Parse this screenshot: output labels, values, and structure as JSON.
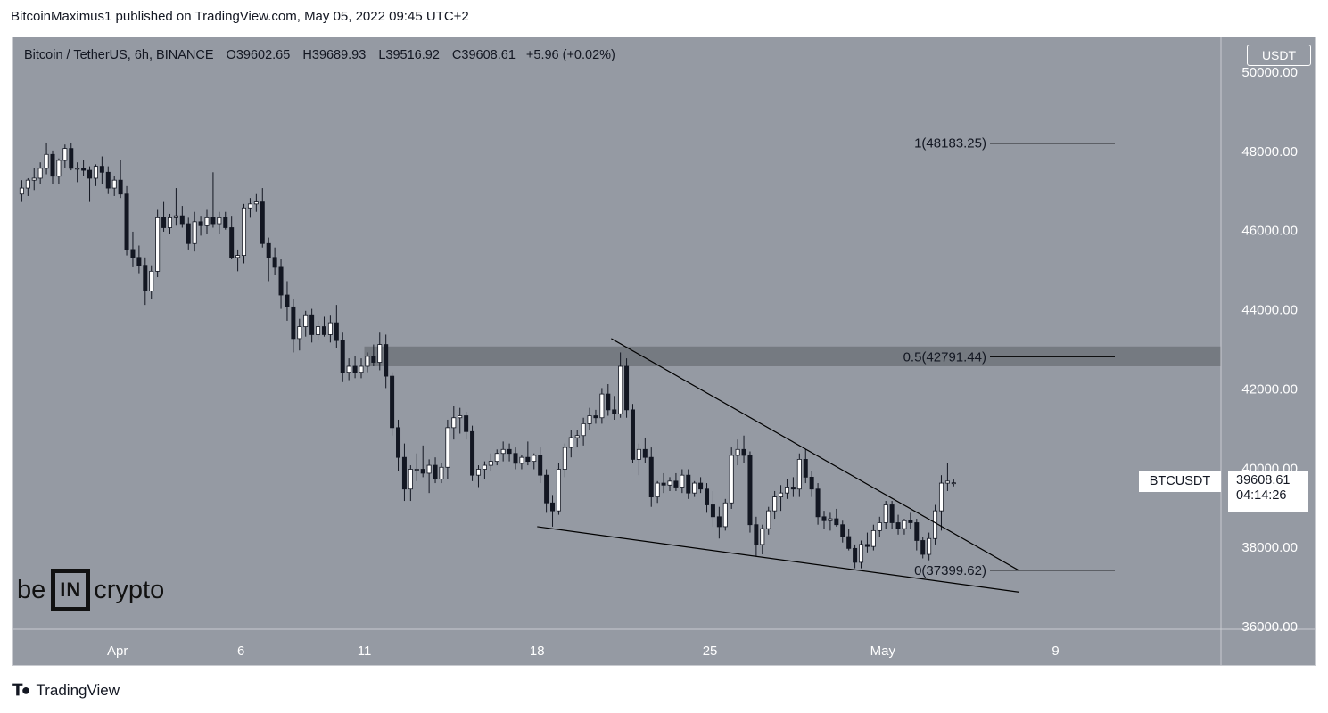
{
  "header": {
    "text": "BitcoinMaximus1 published on TradingView.com, May 05, 2022 09:45 UTC+2"
  },
  "legend": {
    "symbol": "Bitcoin / TetherUS, 6h, BINANCE",
    "o_label": "O",
    "o_value": "39602.65",
    "h_label": "H",
    "h_value": "39689.93",
    "l_label": "L",
    "l_value": "39516.92",
    "c_label": "C",
    "c_value": "39608.61",
    "change": "+5.96 (+0.02%)"
  },
  "currency": "USDT",
  "price_tag": {
    "ticker": "BTCUSDT",
    "price": "39608.61",
    "countdown": "04:14:26"
  },
  "logo": {
    "left": "be",
    "bracket": "IN",
    "right": "crypto"
  },
  "footer": {
    "brand": "TradingView"
  },
  "colors": {
    "background": "#959aa3",
    "up_candle": "#ffffff",
    "down_candle": "#131722",
    "zone": "#6b6f76",
    "line": "#000000"
  },
  "chart_data": {
    "type": "candlestick",
    "symbol": "BTCUSDT",
    "timeframe": "6h",
    "ylim": [
      36000,
      50400
    ],
    "y_ticks": [
      36000,
      38000,
      40000,
      42000,
      44000,
      46000,
      48000,
      50000
    ],
    "y_tick_labels": [
      "36000.00",
      "38000.00",
      "40000.00",
      "42000.00",
      "44000.00",
      "46000.00",
      "48000.00",
      "50000.00"
    ],
    "x_ticks": [
      {
        "label": "Apr",
        "date": "2022-04-01"
      },
      {
        "label": "6",
        "date": "2022-04-06"
      },
      {
        "label": "11",
        "date": "2022-04-11"
      },
      {
        "label": "18",
        "date": "2022-04-18"
      },
      {
        "label": "25",
        "date": "2022-04-25"
      },
      {
        "label": "May",
        "date": "2022-05-02"
      },
      {
        "label": "9",
        "date": "2022-05-09"
      }
    ],
    "xlim": [
      "2022-03-28T00:00",
      "2022-05-13T00:00"
    ],
    "candles": [
      [
        "2022-03-28T00:00",
        46900,
        47250,
        46700,
        47050
      ],
      [
        "2022-03-28T06:00",
        47050,
        47300,
        46850,
        47250
      ],
      [
        "2022-03-28T12:00",
        47250,
        47550,
        47000,
        47300
      ],
      [
        "2022-03-28T18:00",
        47300,
        47700,
        47150,
        47550
      ],
      [
        "2022-03-29T00:00",
        47550,
        48200,
        47400,
        47900
      ],
      [
        "2022-03-29T06:00",
        47900,
        48000,
        47150,
        47350
      ],
      [
        "2022-03-29T12:00",
        47350,
        47800,
        47150,
        47750
      ],
      [
        "2022-03-29T18:00",
        47750,
        48150,
        47550,
        48050
      ],
      [
        "2022-03-30T00:00",
        48050,
        48200,
        47500,
        47550
      ],
      [
        "2022-03-30T06:00",
        47550,
        47700,
        47200,
        47550
      ],
      [
        "2022-03-30T12:00",
        47550,
        47750,
        47350,
        47500
      ],
      [
        "2022-03-30T18:00",
        47500,
        47600,
        46700,
        47300
      ],
      [
        "2022-03-31T00:00",
        47300,
        47650,
        47100,
        47600
      ],
      [
        "2022-03-31T06:00",
        47600,
        47850,
        47150,
        47450
      ],
      [
        "2022-03-31T12:00",
        47450,
        47600,
        46900,
        47050
      ],
      [
        "2022-03-31T18:00",
        47050,
        47350,
        46850,
        47250
      ],
      [
        "2022-04-01T00:00",
        47250,
        47750,
        46800,
        46900
      ],
      [
        "2022-04-01T06:00",
        46900,
        47100,
        45350,
        45500
      ],
      [
        "2022-04-01T12:00",
        45500,
        45950,
        45050,
        45300
      ],
      [
        "2022-04-01T18:00",
        45300,
        45600,
        44900,
        45100
      ],
      [
        "2022-04-02T00:00",
        45100,
        45300,
        44100,
        44450
      ],
      [
        "2022-04-02T06:00",
        44450,
        45100,
        44250,
        44950
      ],
      [
        "2022-04-02T12:00",
        44950,
        46500,
        44800,
        46300
      ],
      [
        "2022-04-02T18:00",
        46300,
        46700,
        45950,
        46050
      ],
      [
        "2022-04-03T00:00",
        46050,
        46400,
        45900,
        46300
      ],
      [
        "2022-04-03T06:00",
        46300,
        47050,
        46100,
        46350
      ],
      [
        "2022-04-03T12:00",
        46350,
        46600,
        46050,
        46150
      ],
      [
        "2022-04-03T18:00",
        46150,
        46300,
        45500,
        45650
      ],
      [
        "2022-04-04T00:00",
        45650,
        46450,
        45450,
        46200
      ],
      [
        "2022-04-04T06:00",
        46200,
        46350,
        45850,
        46100
      ],
      [
        "2022-04-04T12:00",
        46100,
        46500,
        45900,
        46300
      ],
      [
        "2022-04-04T18:00",
        46300,
        47450,
        46050,
        46150
      ],
      [
        "2022-04-05T00:00",
        46150,
        46450,
        45900,
        46300
      ],
      [
        "2022-04-05T06:00",
        46300,
        46450,
        46000,
        46050
      ],
      [
        "2022-04-05T12:00",
        46050,
        46350,
        45250,
        45300
      ],
      [
        "2022-04-05T18:00",
        45300,
        45500,
        44950,
        45350
      ],
      [
        "2022-04-06T00:00",
        45350,
        46650,
        45150,
        46550
      ],
      [
        "2022-04-06T06:00",
        46550,
        46800,
        46300,
        46650
      ],
      [
        "2022-04-06T12:00",
        46650,
        46900,
        46450,
        46700
      ],
      [
        "2022-04-06T18:00",
        46700,
        47050,
        45550,
        45650
      ],
      [
        "2022-04-07T00:00",
        45650,
        45800,
        44700,
        45300
      ],
      [
        "2022-04-07T06:00",
        45300,
        45550,
        44850,
        45050
      ],
      [
        "2022-04-07T12:00",
        45050,
        45250,
        44000,
        44350
      ],
      [
        "2022-04-07T18:00",
        44350,
        44700,
        43700,
        44050
      ],
      [
        "2022-04-08T00:00",
        44050,
        44250,
        42900,
        43250
      ],
      [
        "2022-04-08T06:00",
        43250,
        43750,
        42950,
        43550
      ],
      [
        "2022-04-08T12:00",
        43550,
        43950,
        43300,
        43850
      ],
      [
        "2022-04-08T18:00",
        43850,
        44000,
        43150,
        43350
      ],
      [
        "2022-04-09T00:00",
        43350,
        43700,
        43200,
        43550
      ],
      [
        "2022-04-09T06:00",
        43550,
        43800,
        43300,
        43350
      ],
      [
        "2022-04-09T12:00",
        43350,
        43850,
        43150,
        43650
      ],
      [
        "2022-04-09T18:00",
        43650,
        44100,
        43000,
        43200
      ],
      [
        "2022-04-10T00:00",
        43200,
        43400,
        42150,
        42400
      ],
      [
        "2022-04-10T06:00",
        42400,
        42750,
        42200,
        42550
      ],
      [
        "2022-04-10T12:00",
        42550,
        42800,
        42250,
        42400
      ],
      [
        "2022-04-10T18:00",
        42400,
        42750,
        42250,
        42550
      ],
      [
        "2022-04-11T00:00",
        42550,
        42900,
        42400,
        42800
      ],
      [
        "2022-04-11T06:00",
        42800,
        43100,
        42550,
        42650
      ],
      [
        "2022-04-11T12:00",
        42650,
        43400,
        42450,
        43100
      ],
      [
        "2022-04-11T18:00",
        43100,
        43350,
        42000,
        42300
      ],
      [
        "2022-04-12T00:00",
        42300,
        42400,
        40800,
        41000
      ],
      [
        "2022-04-12T06:00",
        41000,
        41200,
        39900,
        40250
      ],
      [
        "2022-04-12T12:00",
        40250,
        40600,
        39150,
        39450
      ],
      [
        "2022-04-12T18:00",
        39450,
        40050,
        39150,
        39950
      ],
      [
        "2022-04-13T00:00",
        39950,
        40350,
        39650,
        39950
      ],
      [
        "2022-04-13T06:00",
        39950,
        40550,
        39750,
        39850
      ],
      [
        "2022-04-13T12:00",
        39850,
        40200,
        39350,
        40050
      ],
      [
        "2022-04-13T18:00",
        40050,
        40250,
        39600,
        39700
      ],
      [
        "2022-04-14T00:00",
        39700,
        40100,
        39600,
        40000
      ],
      [
        "2022-04-14T06:00",
        40000,
        41200,
        39700,
        41000
      ],
      [
        "2022-04-14T12:00",
        41000,
        41550,
        40700,
        41250
      ],
      [
        "2022-04-14T18:00",
        41250,
        41500,
        40850,
        41300
      ],
      [
        "2022-04-15T00:00",
        41300,
        41400,
        40700,
        40900
      ],
      [
        "2022-04-15T06:00",
        40900,
        41050,
        39650,
        39800
      ],
      [
        "2022-04-15T12:00",
        39800,
        40050,
        39500,
        39950
      ],
      [
        "2022-04-15T18:00",
        39950,
        40150,
        39700,
        40050
      ],
      [
        "2022-04-16T00:00",
        40050,
        40350,
        39900,
        40150
      ],
      [
        "2022-04-16T06:00",
        40150,
        40450,
        40050,
        40350
      ],
      [
        "2022-04-16T12:00",
        40350,
        40650,
        40150,
        40450
      ],
      [
        "2022-04-16T18:00",
        40450,
        40600,
        40150,
        40350
      ],
      [
        "2022-04-17T00:00",
        40350,
        40500,
        39950,
        40100
      ],
      [
        "2022-04-17T06:00",
        40100,
        40300,
        39950,
        40250
      ],
      [
        "2022-04-17T12:00",
        40250,
        40650,
        40050,
        40150
      ],
      [
        "2022-04-17T18:00",
        40150,
        40350,
        39950,
        40300
      ],
      [
        "2022-04-18T00:00",
        40300,
        40500,
        39600,
        39800
      ],
      [
        "2022-04-18T06:00",
        39800,
        39950,
        38850,
        39100
      ],
      [
        "2022-04-18T12:00",
        39100,
        39300,
        38500,
        38900
      ],
      [
        "2022-04-18T18:00",
        38900,
        40100,
        38800,
        39950
      ],
      [
        "2022-04-19T00:00",
        39950,
        40600,
        39750,
        40500
      ],
      [
        "2022-04-19T06:00",
        40500,
        40950,
        40250,
        40750
      ],
      [
        "2022-04-19T12:00",
        40750,
        40950,
        40500,
        40800
      ],
      [
        "2022-04-19T18:00",
        40800,
        41250,
        40550,
        41100
      ],
      [
        "2022-04-20T00:00",
        41100,
        41500,
        40950,
        41300
      ],
      [
        "2022-04-20T06:00",
        41300,
        41450,
        41100,
        41250
      ],
      [
        "2022-04-20T12:00",
        41250,
        42000,
        41100,
        41850
      ],
      [
        "2022-04-20T18:00",
        41850,
        42100,
        41300,
        41450
      ],
      [
        "2022-04-21T00:00",
        41450,
        41800,
        41200,
        41350
      ],
      [
        "2022-04-21T06:00",
        41350,
        42900,
        41250,
        42550
      ],
      [
        "2022-04-21T12:00",
        42550,
        42750,
        41250,
        41450
      ],
      [
        "2022-04-21T18:00",
        41450,
        41600,
        40100,
        40200
      ],
      [
        "2022-04-22T00:00",
        40200,
        40600,
        39800,
        40450
      ],
      [
        "2022-04-22T06:00",
        40450,
        40750,
        40100,
        40250
      ],
      [
        "2022-04-22T12:00",
        40250,
        40500,
        39000,
        39250
      ],
      [
        "2022-04-22T18:00",
        39250,
        39650,
        39100,
        39600
      ],
      [
        "2022-04-23T00:00",
        39600,
        39850,
        39350,
        39550
      ],
      [
        "2022-04-23T06:00",
        39550,
        39750,
        39400,
        39650
      ],
      [
        "2022-04-23T12:00",
        39650,
        39850,
        39400,
        39500
      ],
      [
        "2022-04-23T18:00",
        39500,
        39950,
        39350,
        39800
      ],
      [
        "2022-04-24T00:00",
        39800,
        39950,
        39200,
        39350
      ],
      [
        "2022-04-24T06:00",
        39350,
        39650,
        39250,
        39600
      ],
      [
        "2022-04-24T12:00",
        39600,
        39750,
        39350,
        39450
      ],
      [
        "2022-04-24T18:00",
        39450,
        39600,
        38850,
        39050
      ],
      [
        "2022-04-25T00:00",
        39050,
        39400,
        38500,
        38750
      ],
      [
        "2022-04-25T06:00",
        38750,
        39000,
        38200,
        38500
      ],
      [
        "2022-04-25T12:00",
        38500,
        39200,
        38400,
        39100
      ],
      [
        "2022-04-25T18:00",
        39100,
        40500,
        38950,
        40300
      ],
      [
        "2022-04-26T00:00",
        40300,
        40700,
        40050,
        40450
      ],
      [
        "2022-04-26T06:00",
        40450,
        40800,
        40100,
        40300
      ],
      [
        "2022-04-26T12:00",
        40300,
        40400,
        38350,
        38550
      ],
      [
        "2022-04-26T18:00",
        38550,
        38750,
        37750,
        38050
      ],
      [
        "2022-04-27T00:00",
        38050,
        38550,
        37800,
        38450
      ],
      [
        "2022-04-27T06:00",
        38450,
        39000,
        38300,
        38900
      ],
      [
        "2022-04-27T12:00",
        38900,
        39400,
        38700,
        39250
      ],
      [
        "2022-04-27T18:00",
        39250,
        39550,
        38900,
        39350
      ],
      [
        "2022-04-28T00:00",
        39350,
        39700,
        39200,
        39500
      ],
      [
        "2022-04-28T06:00",
        39500,
        39750,
        39250,
        39450
      ],
      [
        "2022-04-28T12:00",
        39450,
        40350,
        39250,
        40200
      ],
      [
        "2022-04-28T18:00",
        40200,
        40450,
        39600,
        39750
      ],
      [
        "2022-04-29T00:00",
        39750,
        39900,
        39250,
        39450
      ],
      [
        "2022-04-29T06:00",
        39450,
        39600,
        38550,
        38750
      ],
      [
        "2022-04-29T12:00",
        38750,
        38900,
        38450,
        38650
      ],
      [
        "2022-04-29T18:00",
        38650,
        38850,
        38400,
        38700
      ],
      [
        "2022-04-30T00:00",
        38700,
        38950,
        38500,
        38550
      ],
      [
        "2022-04-30T06:00",
        38550,
        38650,
        38100,
        38250
      ],
      [
        "2022-04-30T12:00",
        38250,
        38450,
        37900,
        37950
      ],
      [
        "2022-04-30T18:00",
        37950,
        38050,
        37450,
        37600
      ],
      [
        "2022-05-01T00:00",
        37600,
        38150,
        37450,
        38050
      ],
      [
        "2022-05-01T06:00",
        38050,
        38350,
        37850,
        38000
      ],
      [
        "2022-05-01T12:00",
        38000,
        38550,
        37900,
        38400
      ],
      [
        "2022-05-01T18:00",
        38400,
        38750,
        38250,
        38600
      ],
      [
        "2022-05-02T00:00",
        38600,
        39150,
        38450,
        39050
      ],
      [
        "2022-05-02T06:00",
        39050,
        39150,
        38450,
        38600
      ],
      [
        "2022-05-02T12:00",
        38600,
        38800,
        38300,
        38450
      ],
      [
        "2022-05-02T18:00",
        38450,
        38700,
        38300,
        38650
      ],
      [
        "2022-05-03T00:00",
        38650,
        38850,
        38450,
        38600
      ],
      [
        "2022-05-03T06:00",
        38600,
        38700,
        37900,
        38150
      ],
      [
        "2022-05-03T12:00",
        38150,
        38250,
        37700,
        37800
      ],
      [
        "2022-05-03T18:00",
        37800,
        38350,
        37650,
        38200
      ],
      [
        "2022-05-04T00:00",
        38200,
        39050,
        38050,
        38900
      ],
      [
        "2022-05-04T06:00",
        38900,
        39800,
        38400,
        39600
      ],
      [
        "2022-05-04T12:00",
        39600,
        40100,
        39400,
        39650
      ],
      [
        "2022-05-04T18:00",
        39602.65,
        39689.93,
        39516.92,
        39608.61
      ]
    ],
    "fib_levels": [
      {
        "ratio": "1",
        "price": 48183.25,
        "label": "1(48183.25)"
      },
      {
        "ratio": "0.5",
        "price": 42791.44,
        "label": "0.5(42791.44)"
      },
      {
        "ratio": "0",
        "price": 37399.62,
        "label": "0(37399.62)"
      }
    ],
    "resistance_zone": {
      "from_date": "2022-04-11T00:00",
      "low": 42550,
      "high": 43050
    },
    "trendlines": [
      {
        "name": "descending-resistance",
        "from": [
          "2022-04-21T00:00",
          43250
        ],
        "to": [
          "2022-05-07T12:00",
          37400
        ]
      },
      {
        "name": "descending-support",
        "from": [
          "2022-04-18T00:00",
          38500
        ],
        "to": [
          "2022-05-07T12:00",
          36850
        ]
      }
    ]
  }
}
